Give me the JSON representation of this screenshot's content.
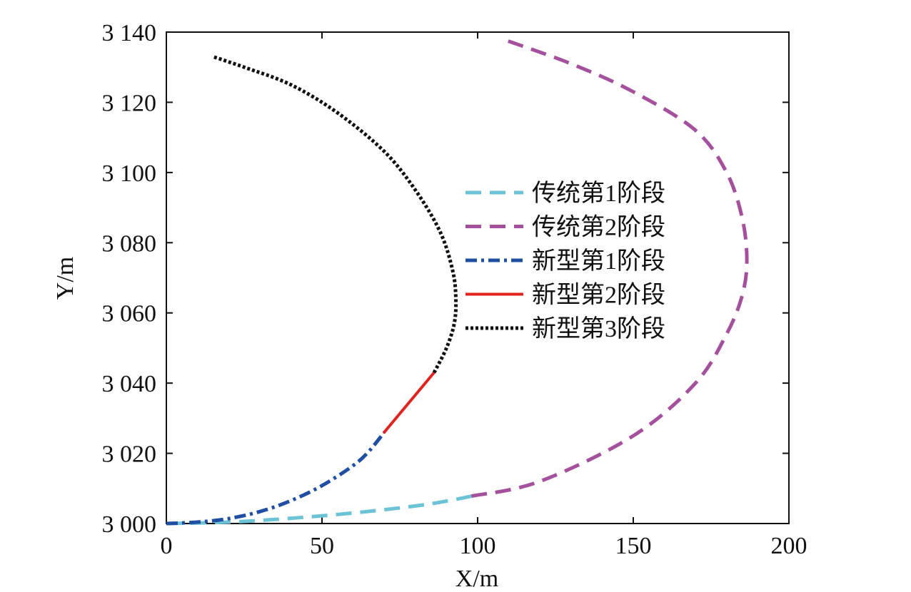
{
  "chart_data": {
    "type": "line",
    "xlabel": "X/m",
    "ylabel": "Y/m",
    "xlim": [
      0,
      200
    ],
    "ylim": [
      3000,
      3140
    ],
    "x_ticks": [
      0,
      50,
      100,
      150,
      200
    ],
    "x_tick_labels": [
      "0",
      "50",
      "100",
      "150",
      "200"
    ],
    "y_ticks": [
      3000,
      3020,
      3040,
      3060,
      3080,
      3100,
      3120,
      3140
    ],
    "y_tick_labels": [
      "3 000",
      "3 020",
      "3 040",
      "3 060",
      "3 080",
      "3 100",
      "3 120",
      "3 140"
    ],
    "grid": false,
    "legend_position": "center-right",
    "series": [
      {
        "name": "传统第1阶段",
        "color": "#6cc3d5",
        "dash": "dashed",
        "x": [
          0,
          20,
          40,
          60,
          80,
          90,
          98
        ],
        "y": [
          3000,
          3000.4,
          3001.5,
          3003,
          3005,
          3006.4,
          3007.8
        ]
      },
      {
        "name": "传统第2阶段",
        "color": "#a4509d",
        "dash": "dashed",
        "x": [
          98,
          120,
          150,
          170,
          180,
          185,
          186.5,
          185,
          180,
          170,
          150,
          130,
          108
        ],
        "y": [
          3007.8,
          3012,
          3025,
          3040,
          3054,
          3065,
          3075,
          3087,
          3100,
          3112,
          3123,
          3131,
          3138
        ]
      },
      {
        "name": "新型第1阶段",
        "color": "#1f4ea3",
        "dash": "dashdot",
        "x": [
          0,
          10,
          20,
          30,
          40,
          50,
          60,
          65,
          70
        ],
        "y": [
          3000,
          3000.4,
          3001.4,
          3003.4,
          3006.5,
          3010.8,
          3016.5,
          3020.5,
          3026
        ]
      },
      {
        "name": "新型第2阶段",
        "color": "#e0231e",
        "dash": "solid",
        "x": [
          70,
          86
        ],
        "y": [
          3026,
          3043
        ]
      },
      {
        "name": "新型第3阶段",
        "color": "#111111",
        "dash": "dotted",
        "x": [
          86,
          90,
          92.5,
          93,
          92,
          88,
          80,
          70,
          55,
          40,
          25,
          15
        ],
        "y": [
          3043,
          3050,
          3057,
          3064,
          3072,
          3083,
          3095,
          3106,
          3117,
          3125,
          3130,
          3133
        ]
      }
    ]
  }
}
